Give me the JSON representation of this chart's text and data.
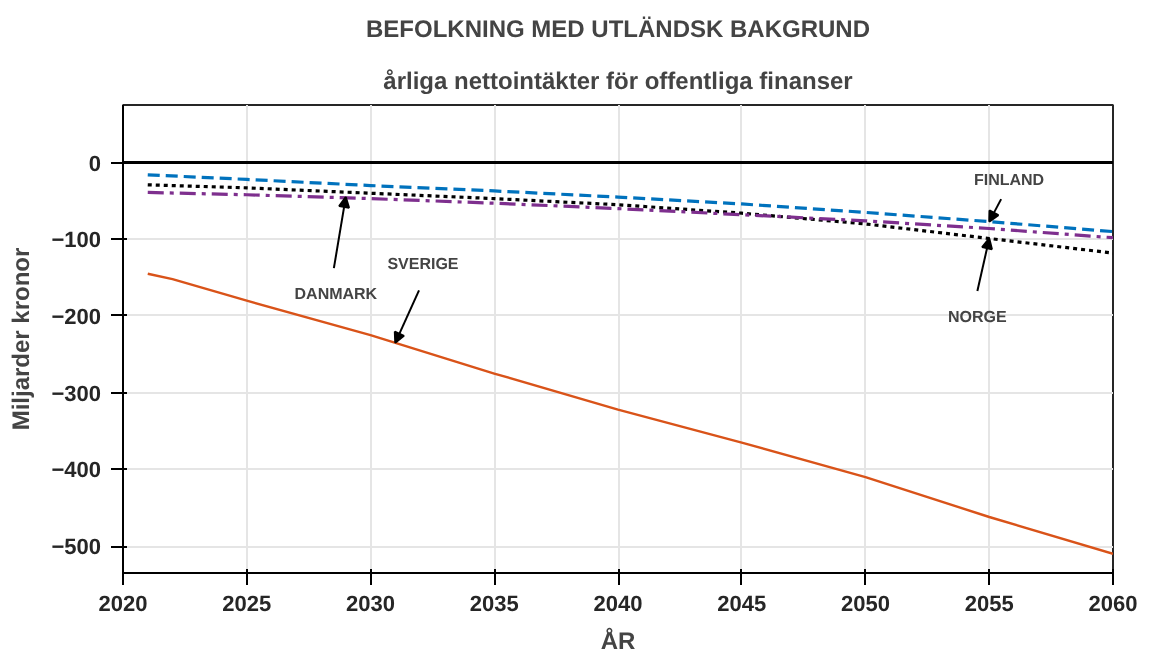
{
  "chart_data": {
    "type": "line",
    "title": "BEFOLKNING MED UTLÄNDSK BAKGRUND",
    "subtitle": "årliga nettointäkter för offentliga finanser",
    "xlabel": "ÅR",
    "ylabel": "Miljarder kronor",
    "xlim": [
      2020,
      2060
    ],
    "xticks": [
      2020,
      2025,
      2030,
      2035,
      2040,
      2045,
      2050,
      2055,
      2060
    ],
    "ylim": [
      -535,
      75
    ],
    "yticks": [
      -500,
      -400,
      -300,
      -200,
      -100,
      0
    ],
    "grid": true,
    "ref_lines": [
      {
        "axis": "y",
        "value": 0,
        "color": "#000000"
      }
    ],
    "series": [
      {
        "color": "#0072bd",
        "line_style": "dashed",
        "x": [
          2021,
          2025,
          2030,
          2035,
          2040,
          2045,
          2050,
          2055,
          2060
        ],
        "values": [
          -16,
          -22,
          -30,
          -37,
          -45,
          -54,
          -65,
          -77,
          -90
        ]
      },
      {
        "color": "#000000",
        "line_style": "dotted",
        "x": [
          2021,
          2025,
          2030,
          2035,
          2040,
          2045,
          2050,
          2055,
          2060
        ],
        "values": [
          -29,
          -33,
          -40,
          -47,
          -55,
          -66,
          -80,
          -99,
          -118
        ]
      },
      {
        "color": "#7e2f8e",
        "line_style": "dashdot",
        "x": [
          2021,
          2025,
          2030,
          2035,
          2040,
          2045,
          2050,
          2055,
          2060
        ],
        "values": [
          -39,
          -42,
          -47,
          -53,
          -60,
          -68,
          -76,
          -86,
          -98
        ]
      },
      {
        "color": "#d95319",
        "line_style": "solid",
        "x": [
          2021,
          2022,
          2025,
          2030,
          2035,
          2040,
          2045,
          2050,
          2055,
          2060
        ],
        "values": [
          -145,
          -152,
          -180,
          -225,
          -275,
          -322,
          -365,
          -410,
          -462,
          -510
        ]
      }
    ],
    "annotations": [
      {
        "text": "DANMARK",
        "x": 2029,
        "y": -45
      },
      {
        "text": "FINLAND",
        "x": 2055,
        "y": -77
      },
      {
        "text": "NORGE",
        "x": 2055,
        "y": -99
      },
      {
        "text": "SVERIGE",
        "x": 2031,
        "y": -235
      }
    ]
  }
}
